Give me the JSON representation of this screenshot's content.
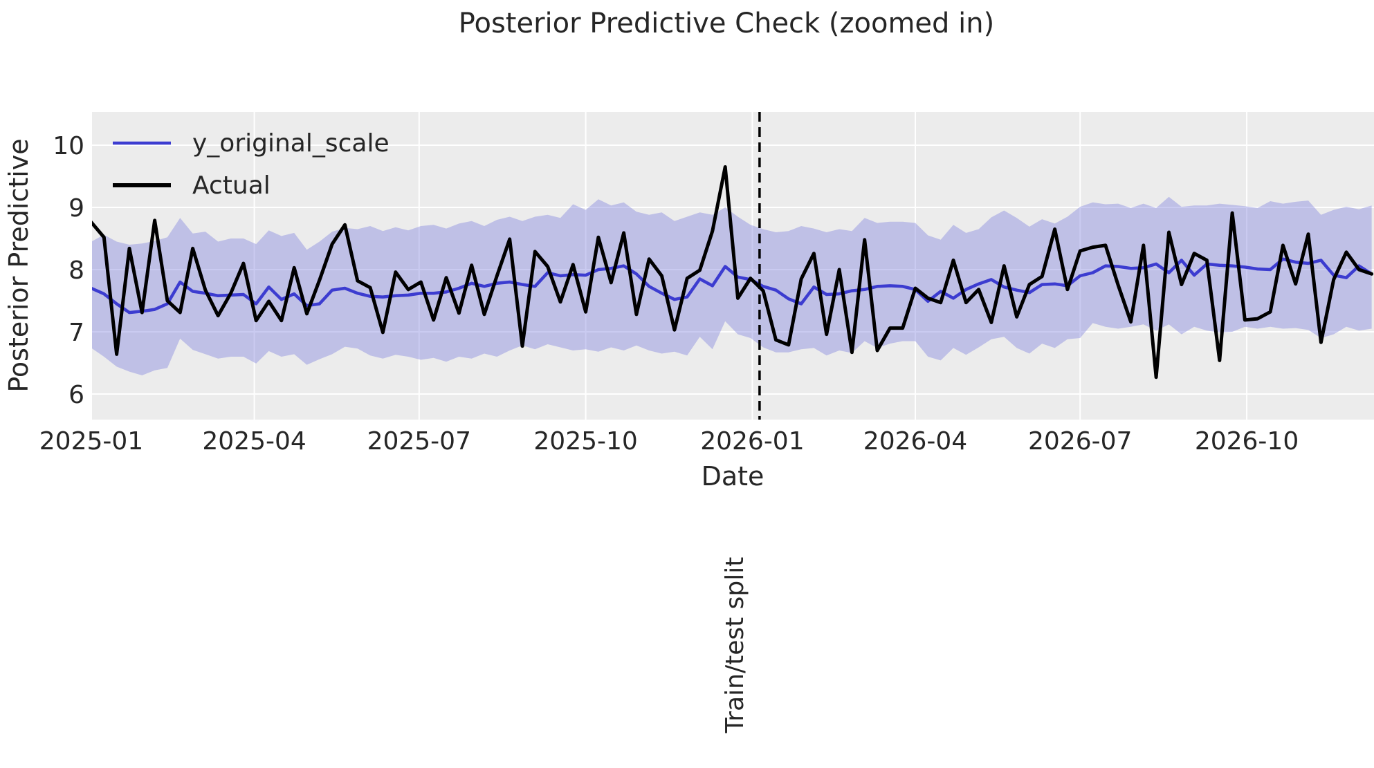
{
  "figure": {
    "title": "Posterior Predictive Check (zoomed in)",
    "xlabel": "Date",
    "ylabel": "Posterior Predictive",
    "split_label": "Train/test split",
    "legend": {
      "entry1": "y_original_scale",
      "entry2": "Actual"
    }
  },
  "colors": {
    "figure_background": "#ffffff",
    "axes_background": "#ececec",
    "gridline": "#ffffff",
    "actual_line": "#000000",
    "predicted_line": "#3c3cd0",
    "band_fill": "#8a8be0",
    "band_opacity": 0.45,
    "split_line": "#000000",
    "text": "#262626"
  },
  "chart_data": {
    "type": "line",
    "title": "Posterior Predictive Check (zoomed in)",
    "xlabel": "Date",
    "ylabel": "Posterior Predictive",
    "grid": true,
    "legend_position": "upper left",
    "x_start_date": "2025-01-01",
    "x_step_days": 7,
    "n_points": 102,
    "x_ticks": [
      {
        "date": "2025-01-01",
        "label": "2025-01"
      },
      {
        "date": "2025-04-01",
        "label": "2025-04"
      },
      {
        "date": "2025-07-01",
        "label": "2025-07"
      },
      {
        "date": "2025-10-01",
        "label": "2025-10"
      },
      {
        "date": "2026-01-01",
        "label": "2026-01"
      },
      {
        "date": "2026-04-01",
        "label": "2026-04"
      },
      {
        "date": "2026-07-01",
        "label": "2026-07"
      },
      {
        "date": "2026-10-01",
        "label": "2026-10"
      }
    ],
    "y_ticks": [
      6,
      7,
      8,
      9,
      10
    ],
    "ylim": [
      5.59,
      10.53
    ],
    "split_date": "2026-01-05",
    "split_label": "Train/test split",
    "series": [
      {
        "name": "y_original_scale",
        "color": "#3c3cd0",
        "values": [
          7.7,
          7.61,
          7.45,
          7.31,
          7.33,
          7.36,
          7.45,
          7.8,
          7.65,
          7.62,
          7.58,
          7.59,
          7.6,
          7.45,
          7.72,
          7.52,
          7.61,
          7.42,
          7.45,
          7.67,
          7.7,
          7.62,
          7.57,
          7.56,
          7.58,
          7.59,
          7.62,
          7.62,
          7.64,
          7.7,
          7.78,
          7.73,
          7.78,
          7.8,
          7.76,
          7.73,
          7.95,
          7.9,
          7.92,
          7.91,
          8.0,
          8.02,
          8.06,
          7.93,
          7.73,
          7.62,
          7.52,
          7.56,
          7.85,
          7.74,
          8.05,
          7.88,
          7.84,
          7.73,
          7.67,
          7.53,
          7.45,
          7.72,
          7.6,
          7.61,
          7.66,
          7.68,
          7.73,
          7.74,
          7.73,
          7.68,
          7.49,
          7.65,
          7.54,
          7.68,
          7.77,
          7.84,
          7.72,
          7.67,
          7.63,
          7.76,
          7.77,
          7.74,
          7.9,
          7.95,
          8.06,
          8.05,
          8.02,
          8.03,
          8.09,
          7.95,
          8.15,
          7.91,
          8.09,
          8.07,
          8.06,
          8.04,
          8.01,
          8.0,
          8.17,
          8.12,
          8.1,
          8.15,
          7.91,
          7.87,
          8.06,
          7.93
        ]
      },
      {
        "name": "Actual",
        "color": "#000000",
        "values": [
          8.76,
          8.52,
          6.64,
          8.34,
          7.31,
          8.79,
          7.5,
          7.31,
          8.34,
          7.67,
          7.26,
          7.62,
          8.1,
          7.18,
          7.49,
          7.18,
          8.03,
          7.29,
          7.83,
          8.41,
          8.72,
          7.82,
          7.71,
          6.99,
          7.96,
          7.68,
          7.8,
          7.19,
          7.87,
          7.3,
          8.07,
          7.28,
          7.9,
          8.49,
          6.77,
          8.29,
          8.05,
          7.48,
          8.08,
          7.32,
          8.52,
          7.79,
          8.59,
          7.28,
          8.17,
          7.9,
          7.03,
          7.86,
          7.99,
          8.62,
          9.65,
          7.54,
          7.86,
          7.66,
          6.87,
          6.79,
          7.85,
          8.26,
          6.96,
          8.0,
          6.67,
          8.48,
          6.7,
          7.06,
          7.06,
          7.7,
          7.54,
          7.47,
          8.15,
          7.47,
          7.68,
          7.15,
          8.06,
          7.24,
          7.76,
          7.89,
          8.65,
          7.68,
          8.3,
          8.36,
          8.39,
          7.75,
          7.16,
          8.39,
          6.27,
          8.6,
          7.76,
          8.26,
          8.15,
          6.54,
          8.91,
          7.19,
          7.21,
          7.32,
          8.39,
          7.77,
          8.57,
          6.83,
          7.84,
          8.28,
          8.0,
          7.93
        ]
      }
    ],
    "band": {
      "name": "posterior-predictive-interval",
      "upper": [
        8.45,
        8.56,
        8.45,
        8.4,
        8.42,
        8.46,
        8.52,
        8.83,
        8.58,
        8.61,
        8.45,
        8.5,
        8.5,
        8.41,
        8.63,
        8.54,
        8.59,
        8.32,
        8.45,
        8.61,
        8.67,
        8.65,
        8.7,
        8.62,
        8.68,
        8.63,
        8.7,
        8.72,
        8.66,
        8.74,
        8.78,
        8.7,
        8.8,
        8.85,
        8.78,
        8.85,
        8.88,
        8.83,
        9.05,
        8.96,
        9.13,
        9.03,
        9.08,
        8.93,
        8.88,
        8.92,
        8.78,
        8.85,
        8.92,
        8.88,
        9.0,
        8.85,
        8.72,
        8.65,
        8.6,
        8.62,
        8.7,
        8.66,
        8.6,
        8.65,
        8.62,
        8.83,
        8.75,
        8.77,
        8.77,
        8.75,
        8.55,
        8.48,
        8.72,
        8.59,
        8.65,
        8.84,
        8.95,
        8.83,
        8.69,
        8.81,
        8.74,
        8.85,
        9.01,
        9.08,
        9.05,
        9.06,
        8.99,
        9.06,
        8.99,
        9.17,
        9.01,
        9.03,
        9.03,
        9.06,
        9.04,
        9.02,
        8.99,
        9.1,
        9.06,
        9.09,
        9.11,
        8.88,
        8.96,
        9.01,
        8.97,
        9.03
      ],
      "lower": [
        6.74,
        6.6,
        6.44,
        6.36,
        6.3,
        6.38,
        6.42,
        6.89,
        6.71,
        6.64,
        6.57,
        6.6,
        6.6,
        6.49,
        6.69,
        6.6,
        6.64,
        6.47,
        6.56,
        6.64,
        6.76,
        6.73,
        6.62,
        6.57,
        6.63,
        6.6,
        6.55,
        6.58,
        6.52,
        6.6,
        6.57,
        6.65,
        6.6,
        6.7,
        6.78,
        6.72,
        6.8,
        6.75,
        6.7,
        6.72,
        6.68,
        6.75,
        6.7,
        6.78,
        6.7,
        6.65,
        6.68,
        6.62,
        6.92,
        6.72,
        7.17,
        6.96,
        6.9,
        6.75,
        6.67,
        6.67,
        6.72,
        6.74,
        6.62,
        6.7,
        6.66,
        6.85,
        6.74,
        6.81,
        6.85,
        6.85,
        6.6,
        6.54,
        6.74,
        6.63,
        6.75,
        6.88,
        6.92,
        6.74,
        6.65,
        6.81,
        6.74,
        6.88,
        6.9,
        7.14,
        7.08,
        7.05,
        7.08,
        7.12,
        7.02,
        7.12,
        6.96,
        7.08,
        7.02,
        6.99,
        7.0,
        7.08,
        7.05,
        7.08,
        7.05,
        7.06,
        7.03,
        6.9,
        6.96,
        7.08,
        7.02,
        7.05
      ]
    }
  }
}
